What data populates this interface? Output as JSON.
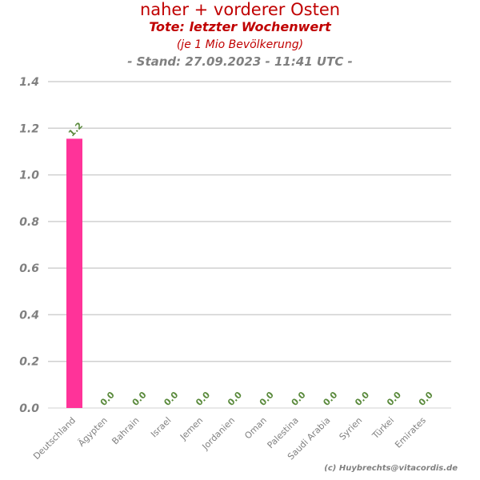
{
  "chart_data": {
    "type": "bar",
    "title": "naher + vorderer Osten",
    "subtitle": "Tote: letzter Wochenwert",
    "subtitle2": "(je 1 Mio Bevölkerung)",
    "stand": "- Stand: 27.09.2023 - 11:41 UTC -",
    "categories": [
      "Deutschland",
      "Ägypten",
      "Bahrain",
      "Israel",
      "Jemen",
      "Jordanien",
      "Oman",
      "Palestina",
      "Saudi Arabia",
      "Syrien",
      "Türkei",
      "Emirates"
    ],
    "values": [
      1.155,
      0,
      0,
      0,
      0,
      0,
      0,
      0,
      0,
      0,
      0,
      0
    ],
    "data_labels": [
      "1.2",
      "0.0",
      "0.0",
      "0.0",
      "0.0",
      "0.0",
      "0.0",
      "0.0",
      "0.0",
      "0.0",
      "0.0",
      "0.0"
    ],
    "yticks": [
      "0.0",
      "0.2",
      "0.4",
      "0.6",
      "0.8",
      "1.0",
      "1.2",
      "1.4"
    ],
    "ylim": [
      0,
      1.4
    ],
    "grid": true,
    "colors": {
      "bar": "#ff3399",
      "grid": "#d0d0d0",
      "label": "#5a8a3c",
      "title": "#c00000",
      "axis_text": "#808080"
    }
  },
  "credit": "(c) Huybrechts@vitacordis.de"
}
